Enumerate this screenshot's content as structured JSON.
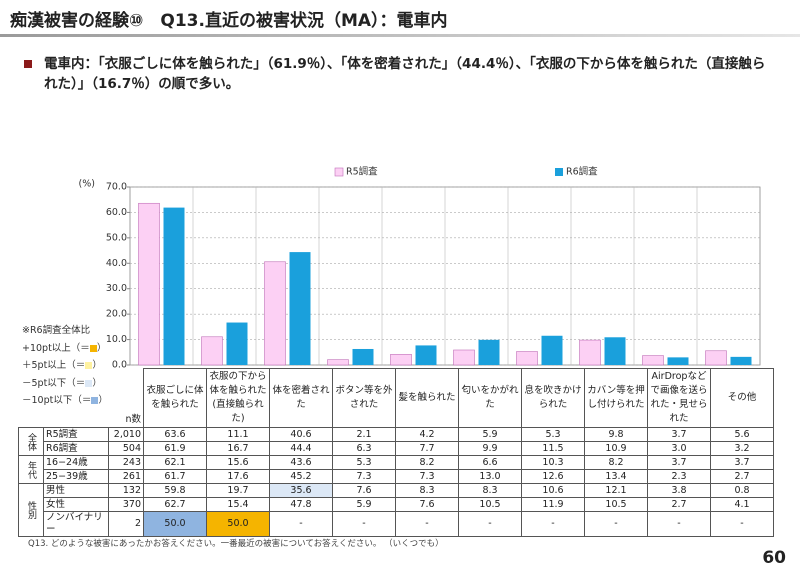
{
  "title": "痴漢被害の経験⑩　Q13.直近の被害状況（MA）：電車内",
  "summary": "電車内：「衣服ごしに体を触られた」（61.9％）、「体を密着された」（44.4％）、「衣服の下から体を触られた（直接触られた）」（16.7％）の順で多い。",
  "chart_data": {
    "type": "bar",
    "y_unit": "(%)",
    "categories": [
      "衣服ごしに体を触られた",
      "衣服の下から体を触られた(直接触られた)",
      "体を密着された",
      "ボタン等を外された",
      "髪を触られた",
      "匂いをかがれた",
      "息を吹きかけられた",
      "カバン等を押し付けられた",
      "AirDropなどで画像を送られた・見せられた",
      "その他"
    ],
    "series": [
      {
        "name": "R5調査",
        "color": "#fcd0f4",
        "values": [
          63.6,
          11.1,
          40.6,
          2.1,
          4.2,
          5.9,
          5.3,
          9.8,
          3.7,
          5.6
        ],
        "value_labels": [
          "63.6",
          "11.1",
          "40.6",
          "2.1",
          "4.2",
          "5.9",
          "5.3",
          "9.8",
          "3.7",
          "5.6"
        ]
      },
      {
        "name": "R6調査",
        "color": "#1aa0dc",
        "values": [
          61.9,
          16.7,
          44.4,
          6.3,
          7.7,
          9.9,
          11.5,
          10.9,
          3.0,
          3.2
        ],
        "value_labels": [
          "61.9",
          "16.7",
          "44.4",
          "6.3",
          "7.7",
          "9.9",
          "11.5",
          "10.9",
          "3.0",
          "3.2"
        ]
      }
    ],
    "ylim": [
      0,
      70
    ],
    "yticks": [
      {
        "value": 0,
        "label": "0.0"
      },
      {
        "value": 10,
        "label": "10.0"
      },
      {
        "value": 20,
        "label": "20.0"
      },
      {
        "value": 30,
        "label": "30.0"
      },
      {
        "value": 40,
        "label": "40.0"
      },
      {
        "value": 50,
        "label": "50.0"
      },
      {
        "value": 60,
        "label": "60.0"
      },
      {
        "value": 70,
        "label": "70.0"
      }
    ],
    "grid": true
  },
  "highlight_legend": {
    "title": "※R6調査全体比",
    "items": [
      {
        "before": "+10pt以上（＝",
        "color": "#f5b400",
        "after": "）"
      },
      {
        "before": "＋5pt以上（＝",
        "color": "#fff2a0",
        "after": "）"
      },
      {
        "before": "－5pt以下（＝",
        "color": "#dce8f6",
        "after": "）"
      },
      {
        "before": "－10pt以下（＝",
        "color": "#8fb4e0",
        "after": "）"
      }
    ]
  },
  "table": {
    "n_header": "n数",
    "overall": {
      "label": "全体",
      "n": [
        "2,010",
        "504"
      ]
    },
    "groups": [
      {
        "label": "年代",
        "rows": [
          {
            "label": "16−24歳",
            "n": "243",
            "cells": [
              "62.1",
              "15.6",
              "43.6",
              "5.3",
              "8.2",
              "6.6",
              "10.3",
              "8.2",
              "3.7",
              "3.7"
            ]
          },
          {
            "label": "25−39歳",
            "n": "261",
            "cells": [
              "61.7",
              "17.6",
              "45.2",
              "7.3",
              "7.3",
              "13.0",
              "12.6",
              "13.4",
              "2.3",
              "2.7"
            ]
          }
        ]
      },
      {
        "label": "性別",
        "rows": [
          {
            "label": "男性",
            "n": "132",
            "cells": [
              "59.8",
              "19.7",
              {
                "text": "35.6",
                "highlight": "#dce8f6"
              },
              "7.6",
              "8.3",
              "8.3",
              "10.6",
              "12.1",
              "3.8",
              "0.8"
            ]
          },
          {
            "label": "女性",
            "n": "370",
            "cells": [
              "62.7",
              "15.4",
              "47.8",
              "5.9",
              "7.6",
              "10.5",
              "11.9",
              "10.5",
              "2.7",
              "4.1"
            ]
          },
          {
            "label": "ノンバイナリー",
            "n": "2",
            "cells": [
              {
                "text": "50.0",
                "highlight": "#8fb4e0"
              },
              {
                "text": "50.0",
                "highlight": "#f5b400"
              },
              "-",
              "-",
              "-",
              "-",
              "-",
              "-",
              "-",
              "-"
            ]
          }
        ]
      }
    ]
  },
  "footnote": "Q13.  どのような被害にあったかお答えください。一番最近の被害についてお答えください。 （いくつでも）",
  "page_number": "60"
}
